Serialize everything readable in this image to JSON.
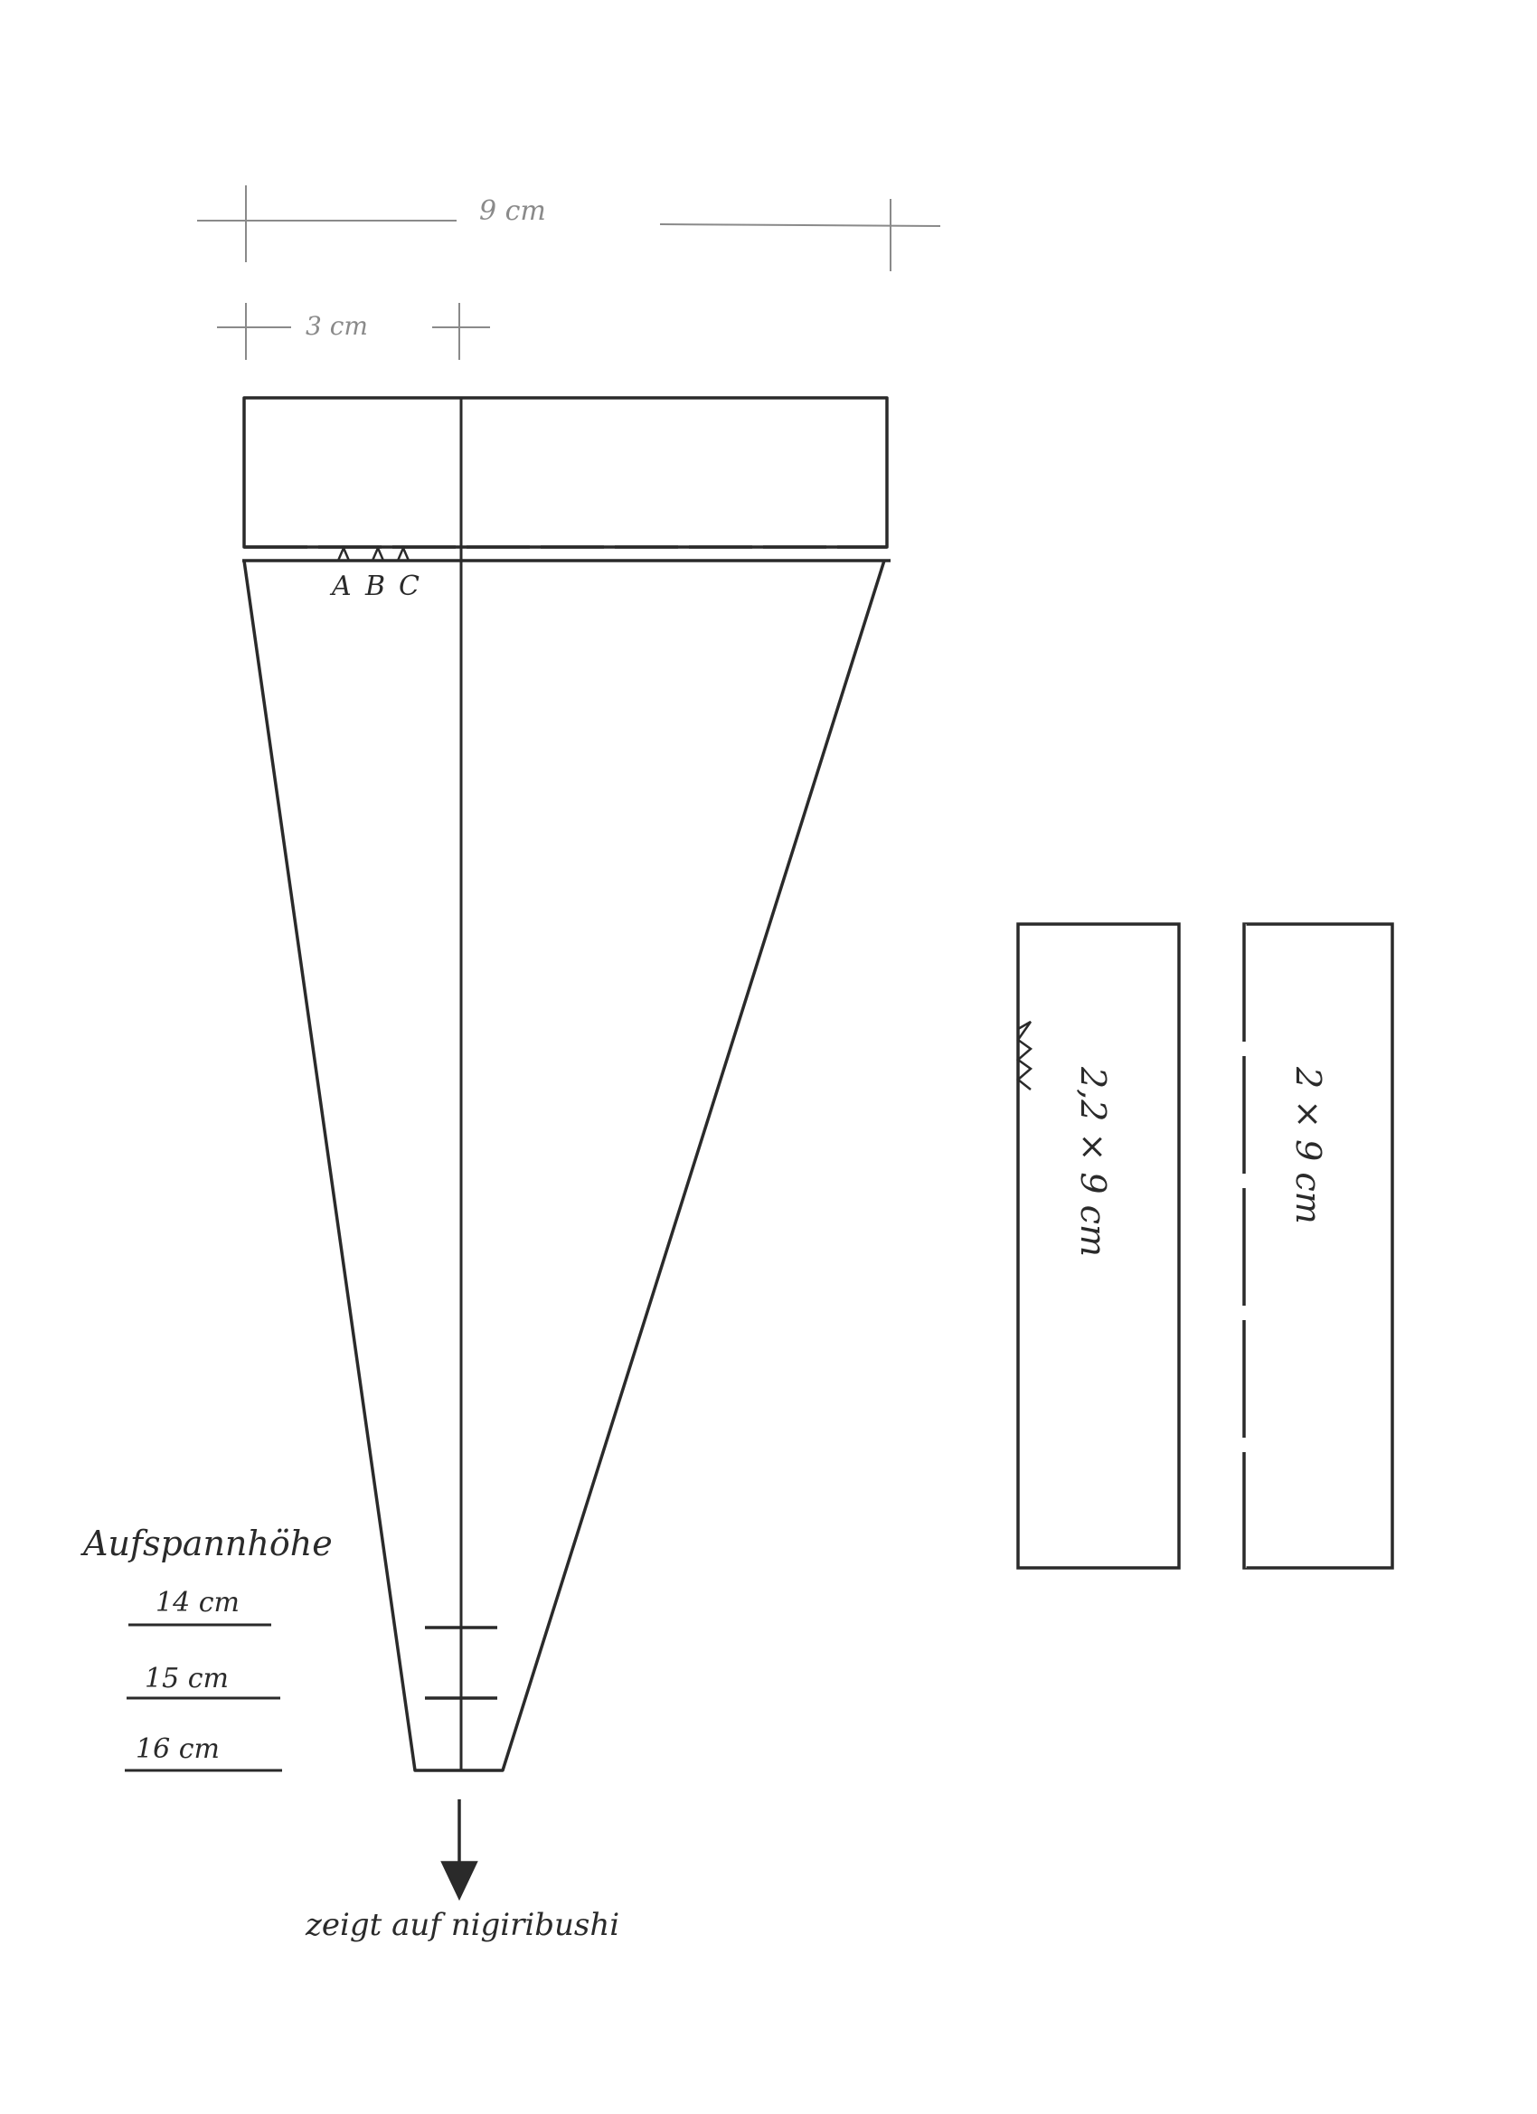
{
  "dimensions": {
    "total_width": "9 cm",
    "top_width": "3 cm"
  },
  "markers": [
    "A",
    "B",
    "C"
  ],
  "height_box": {
    "title": "Aufspannhöhe",
    "options": [
      "14 cm",
      "15 cm",
      "16 cm"
    ]
  },
  "pointer_note": "zeigt auf nigiribushi",
  "strips": [
    {
      "label": "2,2 × 9 cm"
    },
    {
      "label": "2 × 9 cm"
    }
  ],
  "colors": {
    "ink": "#2a2a2a",
    "pencil": "#8a8a8a",
    "paper": "#ffffff"
  }
}
